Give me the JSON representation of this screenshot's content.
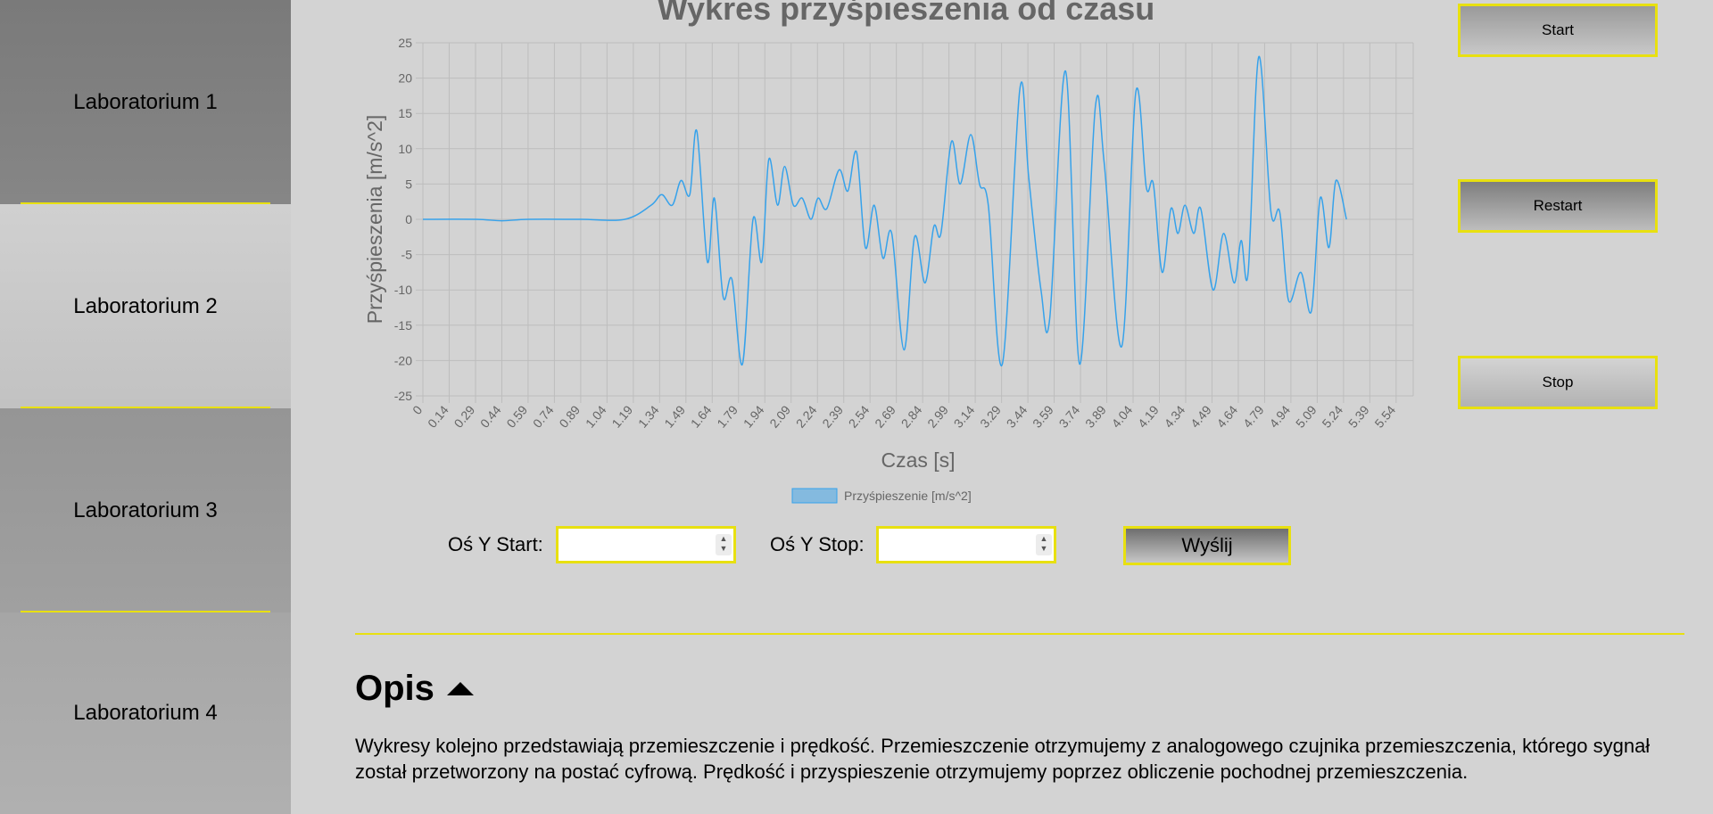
{
  "sidebar": {
    "items": [
      {
        "label": "Laboratorium 1"
      },
      {
        "label": "Laboratorium 2"
      },
      {
        "label": "Laboratorium 3"
      },
      {
        "label": "Laboratorium 4"
      }
    ]
  },
  "controls": {
    "start_label": "Start",
    "restart_label": "Restart",
    "stop_label": "Stop",
    "y_start_label": "Oś Y Start:",
    "y_stop_label": "Oś Y Stop:",
    "y_start_value": "",
    "y_stop_value": "",
    "send_label": "Wyślij"
  },
  "description": {
    "title": "Opis",
    "text": "Wykresy kolejno przedstawiają przemieszczenie i prędkość. Przemieszczenie otrzymujemy z analogowego czujnika przemieszczenia, którego sygnał został przetworzony na postać cyfrową. Prędkość i przyspieszenie otrzymujemy poprzez obliczenie pochodnej przemieszczenia."
  },
  "colors": {
    "accent": "#e8e010",
    "series": "#36a2eb"
  },
  "chart_data": {
    "type": "line",
    "title": "Wykres przyśpieszenia od czasu",
    "xlabel": "Czas [s]",
    "ylabel": "Przyśpieszenia [m/s^2]",
    "ylim": [
      -25,
      25
    ],
    "yticks": [
      25,
      20,
      15,
      10,
      5,
      0,
      -5,
      -10,
      -15,
      -20,
      -25
    ],
    "xlim": [
      0,
      5.64
    ],
    "xticks": [
      "0",
      "0.14",
      "0.29",
      "0.44",
      "0.59",
      "0.74",
      "0.89",
      "1.04",
      "1.19",
      "1.34",
      "1.49",
      "1.64",
      "1.79",
      "1.94",
      "2.09",
      "2.24",
      "2.39",
      "2.54",
      "2.69",
      "2.84",
      "2.99",
      "3.14",
      "3.29",
      "3.44",
      "3.59",
      "3.74",
      "3.89",
      "4.04",
      "4.19",
      "4.34",
      "4.49",
      "4.64",
      "4.79",
      "4.94",
      "5.09",
      "5.24",
      "5.39",
      "5.54"
    ],
    "grid": true,
    "legend_position": "bottom",
    "series": [
      {
        "name": "Przyśpieszenie [m/s^2]",
        "points": [
          [
            0,
            0
          ],
          [
            0.3,
            0
          ],
          [
            0.45,
            -0.2
          ],
          [
            0.6,
            0
          ],
          [
            0.9,
            0
          ],
          [
            1.15,
            0
          ],
          [
            1.3,
            2
          ],
          [
            1.36,
            3.5
          ],
          [
            1.42,
            2
          ],
          [
            1.47,
            5.5
          ],
          [
            1.52,
            3.5
          ],
          [
            1.56,
            12.5
          ],
          [
            1.62,
            -6
          ],
          [
            1.66,
            3
          ],
          [
            1.71,
            -11
          ],
          [
            1.76,
            -8.5
          ],
          [
            1.82,
            -20.5
          ],
          [
            1.88,
            0
          ],
          [
            1.93,
            -6
          ],
          [
            1.97,
            8.5
          ],
          [
            2.02,
            2
          ],
          [
            2.06,
            7.5
          ],
          [
            2.11,
            2
          ],
          [
            2.16,
            3
          ],
          [
            2.21,
            0
          ],
          [
            2.25,
            3
          ],
          [
            2.3,
            1.5
          ],
          [
            2.37,
            7
          ],
          [
            2.42,
            4
          ],
          [
            2.47,
            9.5
          ],
          [
            2.52,
            -4
          ],
          [
            2.57,
            2
          ],
          [
            2.62,
            -5.5
          ],
          [
            2.67,
            -2
          ],
          [
            2.74,
            -18.5
          ],
          [
            2.8,
            -2.5
          ],
          [
            2.86,
            -9
          ],
          [
            2.91,
            -1
          ],
          [
            2.95,
            -2
          ],
          [
            3.01,
            11
          ],
          [
            3.06,
            5
          ],
          [
            3.12,
            12
          ],
          [
            3.17,
            5
          ],
          [
            3.22,
            2
          ],
          [
            3.3,
            -20.5
          ],
          [
            3.4,
            18.5
          ],
          [
            3.45,
            6
          ],
          [
            3.52,
            -10
          ],
          [
            3.57,
            -14
          ],
          [
            3.66,
            21
          ],
          [
            3.74,
            -20.5
          ],
          [
            3.83,
            16
          ],
          [
            3.88,
            8
          ],
          [
            3.98,
            -18
          ],
          [
            4.06,
            18
          ],
          [
            4.12,
            4.5
          ],
          [
            4.16,
            5
          ],
          [
            4.21,
            -7.5
          ],
          [
            4.26,
            1.5
          ],
          [
            4.3,
            -2
          ],
          [
            4.34,
            2
          ],
          [
            4.39,
            -2
          ],
          [
            4.43,
            1.5
          ],
          [
            4.5,
            -10
          ],
          [
            4.56,
            -2
          ],
          [
            4.62,
            -9
          ],
          [
            4.66,
            -3
          ],
          [
            4.7,
            -7.5
          ],
          [
            4.76,
            23
          ],
          [
            4.83,
            1
          ],
          [
            4.88,
            1
          ],
          [
            4.93,
            -11.5
          ],
          [
            5.0,
            -7.5
          ],
          [
            5.06,
            -13
          ],
          [
            5.11,
            3
          ],
          [
            5.16,
            -4
          ],
          [
            5.2,
            5.5
          ],
          [
            5.26,
            0
          ]
        ]
      }
    ]
  }
}
